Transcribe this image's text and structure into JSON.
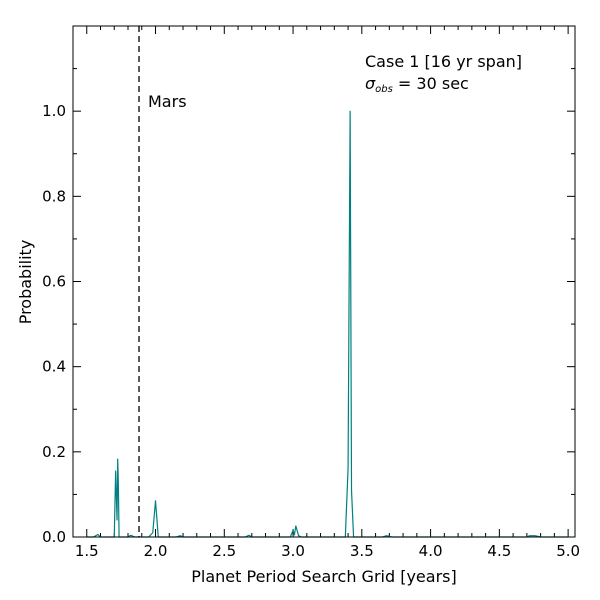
{
  "chart_data": {
    "type": "line",
    "xlabel": "Planet Period Search Grid [years]",
    "ylabel": "Probability",
    "xlim": [
      1.4,
      5.05
    ],
    "ylim": [
      0.0,
      1.2
    ],
    "xticks": [
      1.5,
      2.0,
      2.5,
      3.0,
      3.5,
      4.0,
      4.5,
      5.0
    ],
    "xtick_labels": [
      "1.5",
      "2.0",
      "2.5",
      "3.0",
      "3.5",
      "4.0",
      "4.5",
      "5.0"
    ],
    "yticks": [
      0.0,
      0.2,
      0.4,
      0.6,
      0.8,
      1.0
    ],
    "ytick_labels": [
      "0.0",
      "0.2",
      "0.4",
      "0.6",
      "0.8",
      "1.0"
    ],
    "grid": false,
    "series": [
      {
        "color": "#008080",
        "x": [
          1.5,
          1.55,
          1.58,
          1.6,
          1.65,
          1.7,
          1.71,
          1.72,
          1.725,
          1.73,
          1.735,
          1.74,
          1.75,
          1.8,
          1.82,
          1.85,
          1.9,
          1.95,
          1.98,
          2.0,
          2.02,
          2.05,
          2.1,
          2.15,
          2.18,
          2.2,
          2.3,
          2.4,
          2.5,
          2.6,
          2.65,
          2.68,
          2.7,
          2.75,
          2.8,
          2.9,
          2.98,
          3.0,
          3.01,
          3.02,
          3.04,
          3.06,
          3.1,
          3.2,
          3.3,
          3.38,
          3.4,
          3.415,
          3.425,
          3.44,
          3.47,
          3.5,
          3.6,
          3.65,
          3.68,
          3.72,
          3.8,
          3.9,
          4.0,
          4.2,
          4.4,
          4.6,
          4.7,
          4.72,
          4.76,
          4.8,
          4.9,
          5.0
        ],
        "y": [
          0.0,
          0.0,
          0.006,
          0.0,
          0.0,
          0.0,
          0.155,
          0.04,
          0.183,
          0.12,
          0.0,
          0.0,
          0.0,
          0.0,
          0.004,
          0.0,
          0.0,
          0.0,
          0.01,
          0.085,
          0.0,
          0.0,
          0.0,
          0.0,
          0.003,
          0.0,
          0.0,
          0.0,
          0.0,
          0.0,
          0.0,
          0.004,
          0.0,
          0.0,
          0.0,
          0.0,
          0.0,
          0.016,
          0.005,
          0.026,
          0.003,
          0.0,
          0.0,
          0.0,
          0.0,
          0.0,
          0.16,
          1.0,
          0.11,
          0.0,
          0.0,
          0.0,
          0.0,
          0.0,
          0.003,
          0.0,
          0.0,
          0.0,
          0.0,
          0.0,
          0.0,
          0.0,
          0.0,
          0.003,
          0.003,
          0.0,
          0.0,
          0.0
        ]
      }
    ],
    "vline": {
      "x": 1.88,
      "style": "dashed",
      "color": "#000000",
      "label": "Mars"
    },
    "annotations": {
      "case_label": "Case 1 [16 yr span]",
      "sigma_symbol": "σ",
      "sigma_subscript": "obs",
      "sigma_rest": " = 30 sec"
    }
  }
}
